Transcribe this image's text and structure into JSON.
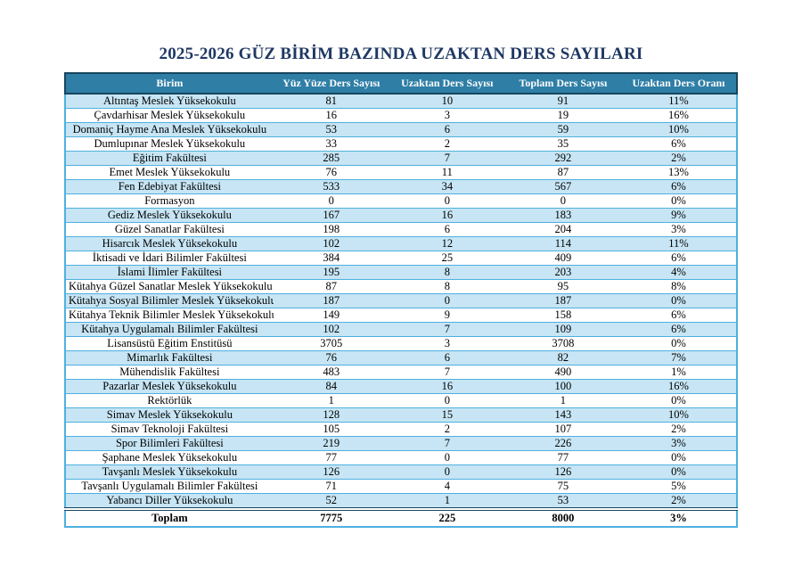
{
  "title": "2025-2026 GÜZ BİRİM BAZINDA UZAKTAN DERS SAYILARI",
  "colors": {
    "title_text": "#1F3864",
    "header_bg": "#2E7EA6",
    "header_text": "#FFFFFF",
    "header_border": "#17455E",
    "band_row_bg": "#C7E5F4",
    "plain_row_bg": "#FFFFFF",
    "row_border": "#4FB0DF",
    "total_divider": "#17455E"
  },
  "table": {
    "headers": [
      "Birim",
      "Yüz Yüze Ders Sayısı",
      "Uzaktan Ders Sayısı",
      "Toplam Ders Sayısı",
      "Uzaktan Ders Oranı"
    ],
    "rows": [
      [
        "Altıntaş Meslek Yüksekokulu",
        "81",
        "10",
        "91",
        "11%"
      ],
      [
        "Çavdarhisar Meslek Yüksekokulu",
        "16",
        "3",
        "19",
        "16%"
      ],
      [
        "Domaniç Hayme Ana Meslek Yüksekokulu",
        "53",
        "6",
        "59",
        "10%"
      ],
      [
        "Dumlupınar Meslek Yüksekokulu",
        "33",
        "2",
        "35",
        "6%"
      ],
      [
        "Eğitim Fakültesi",
        "285",
        "7",
        "292",
        "2%"
      ],
      [
        "Emet Meslek Yüksekokulu",
        "76",
        "11",
        "87",
        "13%"
      ],
      [
        "Fen Edebiyat Fakültesi",
        "533",
        "34",
        "567",
        "6%"
      ],
      [
        "Formasyon",
        "0",
        "0",
        "0",
        "0%"
      ],
      [
        "Gediz Meslek Yüksekokulu",
        "167",
        "16",
        "183",
        "9%"
      ],
      [
        "Güzel Sanatlar Fakültesi",
        "198",
        "6",
        "204",
        "3%"
      ],
      [
        "Hisarcık Meslek Yüksekokulu",
        "102",
        "12",
        "114",
        "11%"
      ],
      [
        "İktisadi ve İdari Bilimler Fakültesi",
        "384",
        "25",
        "409",
        "6%"
      ],
      [
        "İslami İlimler Fakültesi",
        "195",
        "8",
        "203",
        "4%"
      ],
      [
        "Kütahya Güzel Sanatlar Meslek Yüksekokulu",
        "87",
        "8",
        "95",
        "8%"
      ],
      [
        "Kütahya Sosyal Bilimler Meslek Yüksekokulu",
        "187",
        "0",
        "187",
        "0%"
      ],
      [
        "Kütahya Teknik Bilimler Meslek Yüksekokulu",
        "149",
        "9",
        "158",
        "6%"
      ],
      [
        "Kütahya Uygulamalı Bilimler Fakültesi",
        "102",
        "7",
        "109",
        "6%"
      ],
      [
        "Lisansüstü Eğitim Enstitüsü",
        "3705",
        "3",
        "3708",
        "0%"
      ],
      [
        "Mimarlık Fakültesi",
        "76",
        "6",
        "82",
        "7%"
      ],
      [
        "Mühendislik Fakültesi",
        "483",
        "7",
        "490",
        "1%"
      ],
      [
        "Pazarlar Meslek Yüksekokulu",
        "84",
        "16",
        "100",
        "16%"
      ],
      [
        "Rektörlük",
        "1",
        "0",
        "1",
        "0%"
      ],
      [
        "Simav Meslek Yüksekokulu",
        "128",
        "15",
        "143",
        "10%"
      ],
      [
        "Simav Teknoloji Fakültesi",
        "105",
        "2",
        "107",
        "2%"
      ],
      [
        "Spor Bilimleri Fakültesi",
        "219",
        "7",
        "226",
        "3%"
      ],
      [
        "Şaphane Meslek Yüksekokulu",
        "77",
        "0",
        "77",
        "0%"
      ],
      [
        "Tavşanlı Meslek Yüksekokulu",
        "126",
        "0",
        "126",
        "0%"
      ],
      [
        "Tavşanlı Uygulamalı Bilimler Fakültesi",
        "71",
        "4",
        "75",
        "5%"
      ],
      [
        "Yabancı Diller Yüksekokulu",
        "52",
        "1",
        "53",
        "2%"
      ]
    ],
    "total_row": [
      "Toplam",
      "7775",
      "225",
      "8000",
      "3%"
    ]
  }
}
